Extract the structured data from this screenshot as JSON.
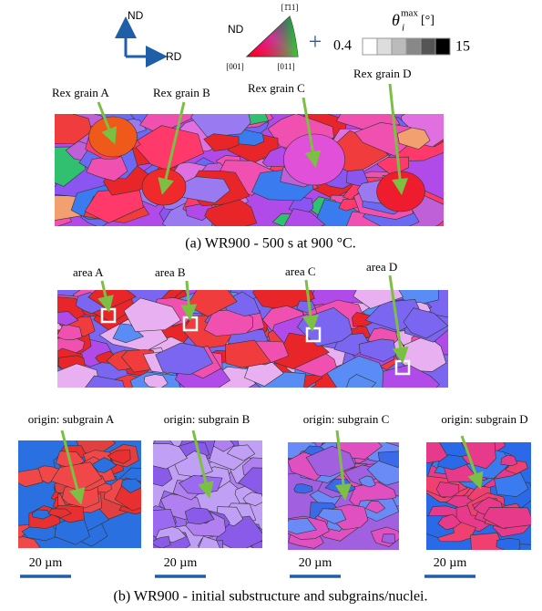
{
  "legend": {
    "axes": {
      "vertical": "ND",
      "horizontal": "RD"
    },
    "ipf": {
      "title": "ND",
      "top": "[1̄11]",
      "left": "[001]",
      "right": "[011]"
    },
    "plus": "+",
    "colorbar": {
      "symbol": "θ",
      "subscript": "i",
      "superscript": "max",
      "unit": "[°]",
      "min": 0.4,
      "max": 15
    }
  },
  "panel_a": {
    "labels": [
      "Rex grain A",
      "Rex grain B",
      "Rex grain C",
      "Rex grain D"
    ],
    "caption": "(a) WR900 - 500 s at 900  °C."
  },
  "panel_b": {
    "areas": [
      "area A",
      "area B",
      "area C",
      "area D"
    ],
    "origins": [
      "origin: subgrain A",
      "origin: subgrain B",
      "origin: subgrain C",
      "origin: subgrain D"
    ],
    "scale_bars": [
      "20 µm",
      "20 µm",
      "20 µm",
      "20 µm"
    ],
    "caption": "(b) WR900 - initial substructure and subgrains/nuclei."
  }
}
